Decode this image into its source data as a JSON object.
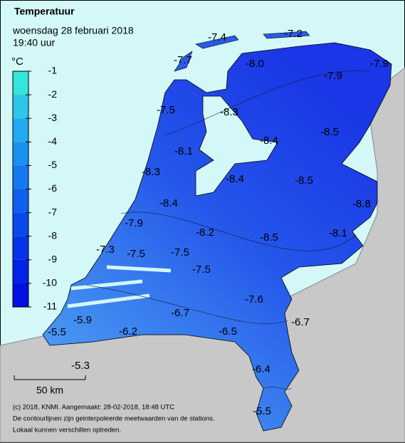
{
  "header": {
    "title": "Temperatuur",
    "date": "woensdag 28 februari 2018",
    "time": "19:40 uur"
  },
  "legend": {
    "unit": "°C",
    "ticks": [
      -1,
      -2,
      -3,
      -4,
      -5,
      -6,
      -7,
      -8,
      -9,
      -10,
      -11
    ]
  },
  "stations": [
    -7.4,
    -7.2,
    -7.7,
    -8.0,
    -7.9,
    -7.9,
    -7.5,
    -8.3,
    -8.5,
    -8.4,
    -8.1,
    -8.3,
    -8.4,
    -8.5,
    -8.8,
    -8.4,
    -7.9,
    -8.2,
    -8.5,
    -8.1,
    -7.3,
    -7.5,
    -7.5,
    -7.5,
    -7.6,
    -5.9,
    -6.7,
    -6.7,
    -5.5,
    -6.2,
    -6.5,
    -5.3,
    -6.4,
    -5.5
  ],
  "scale": {
    "label": "50 km"
  },
  "footer": [
    "(c) 2018, KNMI. Aangemaakt: 28-02-2018, 18:48 UTC",
    "De contourlijnen zijn geinterpoleerde meetwaarden van de stations.",
    "Lokaal kunnen verschillen optreden."
  ]
}
